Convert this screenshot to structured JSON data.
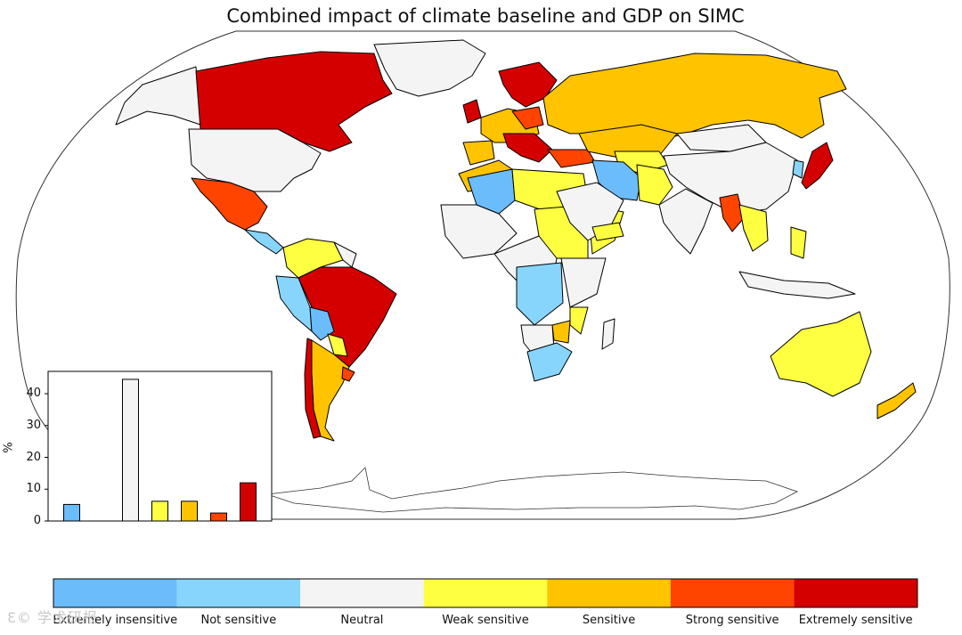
{
  "title": "Combined impact of climate baseline and GDP on SIMC",
  "legend": {
    "categories": [
      {
        "label": "Extremely insensitive",
        "color": "#6bbcfb"
      },
      {
        "label": "Not sensitive",
        "color": "#87d5fd"
      },
      {
        "label": "Neutral",
        "color": "#f4f4f4"
      },
      {
        "label": "Weak sensitive",
        "color": "#ffff42"
      },
      {
        "label": "Sensitive",
        "color": "#ffc300"
      },
      {
        "label": "Strong sensitive",
        "color": "#ff4400"
      },
      {
        "label": "Extremely sensitive",
        "color": "#d40000"
      }
    ]
  },
  "chart_data": {
    "type": "bar",
    "categories": [
      "Extremely insensitive",
      "Not sensitive",
      "Neutral",
      "Weak sensitive",
      "Sensitive",
      "Strong sensitive",
      "Extremely sensitive"
    ],
    "values": [
      5.2,
      0,
      44.5,
      6.2,
      6.2,
      2.5,
      12
    ],
    "ylabel": "%",
    "yticks": [
      0,
      10,
      20,
      30,
      40
    ],
    "ylim": [
      0,
      47
    ]
  },
  "watermark": "Ɛ© 学术研报"
}
